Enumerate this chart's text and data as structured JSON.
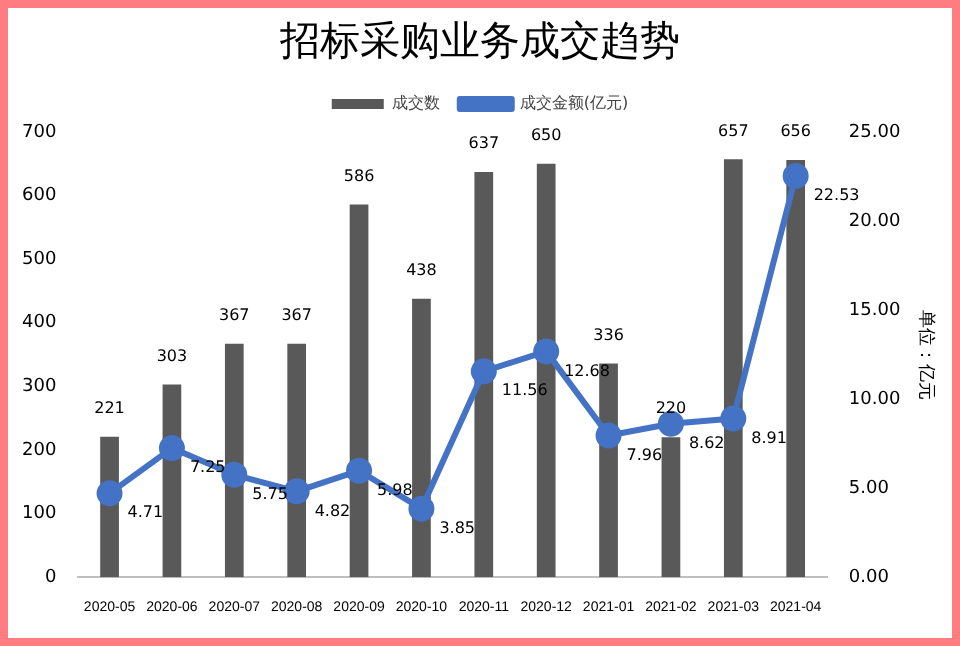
{
  "chart_data": {
    "type": "bar",
    "title": "招标采购业务成交趋势",
    "y2label": "单位：亿元",
    "categories": [
      "2020-05",
      "2020-06",
      "2020-07",
      "2020-08",
      "2020-09",
      "2020-10",
      "2020-11",
      "2020-12",
      "2021-01",
      "2021-02",
      "2021-03",
      "2021-04"
    ],
    "series": [
      {
        "name": "成交数",
        "color": "#595959",
        "values": [
          221,
          303,
          367,
          367,
          586,
          438,
          637,
          650,
          336,
          220,
          657,
          656
        ]
      },
      {
        "name": "成交金额(亿元)",
        "type": "line",
        "axis": "y2",
        "color": "#4472c4",
        "values": [
          4.71,
          7.25,
          5.75,
          4.82,
          5.98,
          3.85,
          11.56,
          12.68,
          7.96,
          8.62,
          8.91,
          22.53
        ]
      }
    ],
    "ylim": [
      0,
      700
    ],
    "yticks": [
      0,
      100,
      200,
      300,
      400,
      500,
      600,
      700
    ],
    "y2lim": [
      0,
      25
    ],
    "y2ticks": [
      {
        "value": 0,
        "label": "0.00"
      },
      {
        "value": 5,
        "label": "5.00"
      },
      {
        "value": 10,
        "label": "10.00"
      },
      {
        "value": 15,
        "label": "15.00"
      },
      {
        "value": 20,
        "label": "20.00"
      },
      {
        "value": 25,
        "label": "25.00"
      }
    ],
    "legend": "top",
    "marker": "circle",
    "data_labels": true
  }
}
